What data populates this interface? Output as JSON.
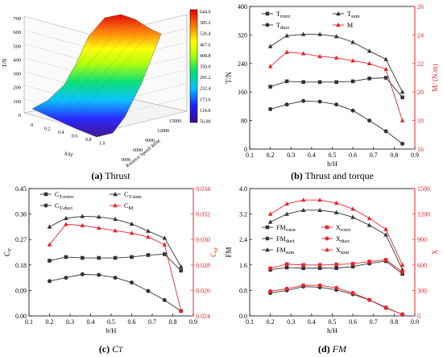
{
  "captions": {
    "a": {
      "letter": "(a)",
      "text": "Thrust"
    },
    "b": {
      "letter": "(b)",
      "text": "Thrust and torque"
    },
    "c": {
      "letter": "(c)",
      "text": "C",
      "sub": "T"
    },
    "d": {
      "letter": "(d)",
      "text": "FM"
    }
  },
  "chart_data": [
    {
      "id": "a",
      "type": "surface3d",
      "z_ticks": [
        "0",
        "100",
        "200",
        "300",
        "400",
        "500",
        "600",
        "700"
      ],
      "z_label": "T/N",
      "x_ticks": [
        "0",
        "0.2",
        "0.4",
        "0.6",
        "0.8",
        "1.0"
      ],
      "x_label": "h/H",
      "y_ticks": [
        "3000",
        "6000",
        "9000",
        "12000",
        "15000"
      ],
      "y_label": "Rotation Speed/ RPM",
      "colorbar": [
        "644.0",
        "585.2",
        "526.4",
        "467.6",
        "408.8",
        "350.0",
        "291.2",
        "232.4",
        "173.6",
        "114.8",
        "56.00"
      ],
      "colorbar_range": [
        56.0,
        644.0
      ]
    },
    {
      "id": "b",
      "type": "line",
      "x": [
        0.2,
        0.28,
        0.36,
        0.44,
        0.52,
        0.6,
        0.68,
        0.76,
        0.84
      ],
      "xlim": [
        0.1,
        0.9
      ],
      "x_ticks": [
        "0.1",
        "0.2",
        "0.3",
        "0.4",
        "0.5",
        "0.6",
        "0.7",
        "0.8",
        "0.9"
      ],
      "xlabel": "h/H",
      "ylabel": "T/N",
      "ylim": [
        0,
        400
      ],
      "y_ticks": [
        "0",
        "80",
        "160",
        "240",
        "320",
        "400"
      ],
      "ylabel2": "M/ (N.m)",
      "ylim2": [
        16,
        26
      ],
      "y2_ticks": [
        "16",
        "18",
        "20",
        "22",
        "24",
        "26"
      ],
      "series": [
        {
          "name": "T",
          "sub": "rotor",
          "axis": "left",
          "marker": "square",
          "color": "#333333",
          "values": [
            175,
            190,
            188,
            188,
            188,
            190,
            198,
            200,
            145
          ]
        },
        {
          "name": "T",
          "sub": "duct",
          "axis": "left",
          "marker": "circle",
          "color": "#333333",
          "values": [
            112,
            125,
            135,
            133,
            125,
            108,
            80,
            50,
            15
          ]
        },
        {
          "name": "T",
          "sub": "sum",
          "axis": "left",
          "marker": "triangle",
          "color": "#333333",
          "values": [
            288,
            318,
            322,
            322,
            316,
            300,
            275,
            252,
            160
          ]
        },
        {
          "name": "M",
          "sub": "",
          "axis": "right",
          "marker": "triangle",
          "color": "#e8252a",
          "values": [
            21.8,
            22.8,
            22.7,
            22.5,
            22.4,
            22.2,
            22.0,
            21.6,
            18.0
          ]
        }
      ]
    },
    {
      "id": "c",
      "type": "line",
      "x": [
        0.2,
        0.28,
        0.36,
        0.44,
        0.52,
        0.6,
        0.68,
        0.76,
        0.84
      ],
      "xlim": [
        0.1,
        0.9
      ],
      "x_ticks": [
        "0.1",
        "0.2",
        "0.3",
        "0.4",
        "0.5",
        "0.6",
        "0.7",
        "0.8",
        "0.9"
      ],
      "xlabel": "h/H",
      "ylabel": "C",
      "ylabel_sub": "T",
      "ylim": [
        0,
        0.45
      ],
      "y_ticks": [
        "0.00",
        "0.09",
        "0.18",
        "0.27",
        "0.36",
        "0.45"
      ],
      "ylabel2": "C",
      "ylabel2_sub": "M",
      "ylim2": [
        0.024,
        0.034
      ],
      "y2_ticks": [
        "0.024",
        "0.026",
        "0.028",
        "0.030",
        "0.032",
        "0.034"
      ],
      "series": [
        {
          "name": "C",
          "sub": "T-rotor",
          "axis": "left",
          "marker": "square",
          "color": "#333333",
          "values": [
            0.195,
            0.208,
            0.205,
            0.205,
            0.205,
            0.208,
            0.215,
            0.218,
            0.16
          ]
        },
        {
          "name": "C",
          "sub": "T-duct",
          "axis": "left",
          "marker": "circle",
          "color": "#333333",
          "values": [
            0.123,
            0.135,
            0.147,
            0.145,
            0.135,
            0.118,
            0.088,
            0.056,
            0.017
          ]
        },
        {
          "name": "C",
          "sub": "T-sum",
          "axis": "left",
          "marker": "triangle",
          "color": "#333333",
          "values": [
            0.315,
            0.345,
            0.352,
            0.35,
            0.342,
            0.325,
            0.3,
            0.275,
            0.174
          ]
        },
        {
          "name": "C",
          "sub": "M",
          "axis": "right",
          "marker": "triangle",
          "color": "#e8252a",
          "values": [
            0.0296,
            0.0312,
            0.0311,
            0.0309,
            0.0307,
            0.0305,
            0.0302,
            0.0296,
            0.0244
          ]
        }
      ]
    },
    {
      "id": "d",
      "type": "line",
      "x": [
        0.2,
        0.28,
        0.36,
        0.44,
        0.52,
        0.6,
        0.68,
        0.76,
        0.84
      ],
      "xlim": [
        0.1,
        0.9
      ],
      "x_ticks": [
        "0.1",
        "0.2",
        "0.3",
        "0.4",
        "0.5",
        "0.6",
        "0.7",
        "0.8",
        "0.9"
      ],
      "xlabel": "h/H",
      "ylabel": "FM",
      "ylim": [
        0,
        4.0
      ],
      "y_ticks": [
        "0.0",
        "0.8",
        "1.6",
        "2.4",
        "3.2",
        "4.0"
      ],
      "ylabel2": "X",
      "ylim2": [
        0,
        1500
      ],
      "y2_ticks": [
        "0",
        "300",
        "600",
        "900",
        "1200",
        "1500"
      ],
      "series": [
        {
          "name": "FM",
          "sub": "rotor",
          "axis": "left",
          "marker": "square",
          "color": "#333333",
          "values": [
            1.45,
            1.52,
            1.5,
            1.5,
            1.5,
            1.55,
            1.65,
            1.72,
            1.32
          ]
        },
        {
          "name": "FM",
          "sub": "duct",
          "axis": "left",
          "marker": "circle",
          "color": "#333333",
          "values": [
            0.72,
            0.8,
            0.92,
            0.9,
            0.82,
            0.68,
            0.5,
            0.25,
            0.05
          ]
        },
        {
          "name": "FM",
          "sub": "sum",
          "axis": "left",
          "marker": "triangle",
          "color": "#333333",
          "values": [
            2.95,
            3.2,
            3.32,
            3.32,
            3.25,
            3.1,
            2.85,
            2.55,
            1.45
          ]
        },
        {
          "name": "X",
          "sub": "rotor",
          "axis": "right",
          "marker": "square",
          "color": "#e8252a",
          "values": [
            560,
            610,
            600,
            600,
            605,
            615,
            640,
            660,
            520
          ]
        },
        {
          "name": "X",
          "sub": "duct",
          "axis": "right",
          "marker": "circle",
          "color": "#e8252a",
          "values": [
            290,
            320,
            360,
            360,
            330,
            270,
            190,
            100,
            15
          ]
        },
        {
          "name": "X",
          "sub": "sum",
          "axis": "right",
          "marker": "triangle",
          "color": "#e8252a",
          "values": [
            1200,
            1320,
            1365,
            1365,
            1330,
            1260,
            1150,
            1020,
            600
          ]
        }
      ]
    }
  ]
}
